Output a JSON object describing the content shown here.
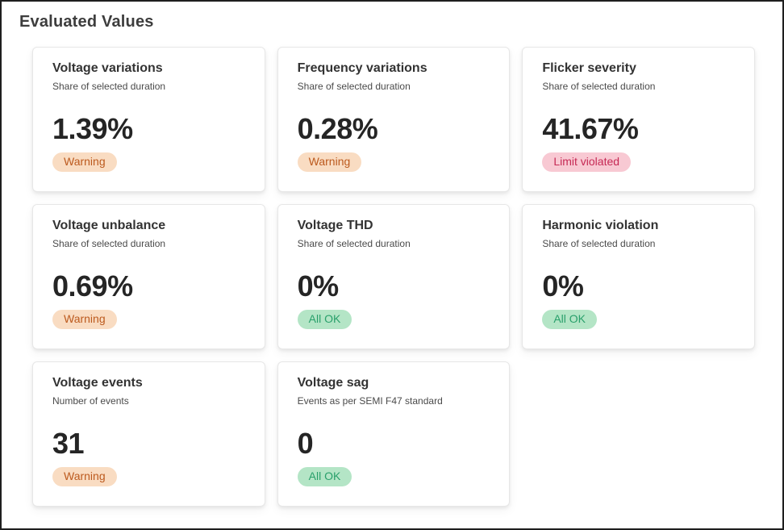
{
  "page": {
    "title": "Evaluated Values"
  },
  "cards": [
    {
      "title": "Voltage variations",
      "subtitle": "Share of selected duration",
      "value": "1.39%",
      "status": "Warning",
      "status_type": "warning"
    },
    {
      "title": "Frequency variations",
      "subtitle": "Share of selected duration",
      "value": "0.28%",
      "status": "Warning",
      "status_type": "warning"
    },
    {
      "title": "Flicker severity",
      "subtitle": "Share of selected duration",
      "value": "41.67%",
      "status": "Limit violated",
      "status_type": "violated"
    },
    {
      "title": "Voltage unbalance",
      "subtitle": "Share of selected duration",
      "value": "0.69%",
      "status": "Warning",
      "status_type": "warning"
    },
    {
      "title": "Voltage THD",
      "subtitle": "Share of selected duration",
      "value": "0%",
      "status": "All OK",
      "status_type": "ok"
    },
    {
      "title": "Harmonic violation",
      "subtitle": "Share of selected duration",
      "value": "0%",
      "status": "All OK",
      "status_type": "ok"
    },
    {
      "title": "Voltage events",
      "subtitle": "Number of events",
      "value": "31",
      "status": "Warning",
      "status_type": "warning"
    },
    {
      "title": "Voltage sag",
      "subtitle": "Events as per SEMI F47 standard",
      "value": "0",
      "status": "All OK",
      "status_type": "ok"
    }
  ],
  "colors": {
    "warning_bg": "#f9dcc2",
    "warning_text": "#bc5a1e",
    "violated_bg": "#f8c9d3",
    "violated_text": "#c62a55",
    "ok_bg": "#b4e5c6",
    "ok_text": "#29a06b",
    "title_text": "#3d3d3d",
    "card_border": "#e7e7e7",
    "frame_border": "#1e1e1e"
  }
}
